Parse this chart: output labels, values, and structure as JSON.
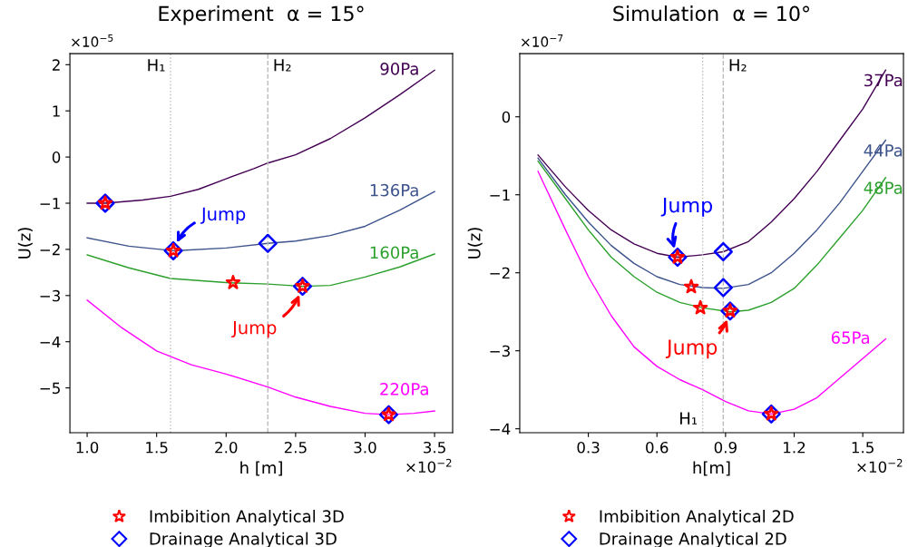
{
  "chart_data": [
    {
      "type": "line",
      "title": "Experiment  α = 15°",
      "xlabel": "h [m]",
      "ylabel": "U(z)",
      "xlim": [
        0.876,
        3.63
      ],
      "xticks": [
        {
          "value": 1.0,
          "label": "1.0"
        },
        {
          "value": 1.5,
          "label": "1.5"
        },
        {
          "value": 2.0,
          "label": "2.0"
        },
        {
          "value": 2.5,
          "label": "2.5"
        },
        {
          "value": 3.0,
          "label": "3.0"
        },
        {
          "value": 3.5,
          "label": "3.5"
        }
      ],
      "ylim": [
        -5.97,
        2.24
      ],
      "yticks": [
        {
          "value": -5,
          "label": "−5"
        },
        {
          "value": -4,
          "label": "−4"
        },
        {
          "value": -3,
          "label": "−3"
        },
        {
          "value": -2,
          "label": "−2"
        },
        {
          "value": -1,
          "label": "−1"
        },
        0,
        1,
        2
      ],
      "grid": false,
      "legend": "bottom",
      "series": [
        {
          "name": "90Pa",
          "color": "#440154",
          "x": [
            1.0,
            1.13,
            1.4,
            1.6,
            1.8,
            2.0,
            2.2,
            2.3,
            2.5,
            2.75,
            3.0,
            3.25,
            3.5
          ],
          "values": [
            -1.0,
            -1.0,
            -0.93,
            -0.85,
            -0.7,
            -0.47,
            -0.25,
            -0.13,
            0.05,
            0.4,
            0.85,
            1.35,
            1.88
          ]
        },
        {
          "name": "136Pa",
          "color": "#3b528b",
          "x": [
            1.0,
            1.3,
            1.62,
            2.0,
            2.3,
            2.5,
            2.75,
            3.0,
            3.25,
            3.5
          ],
          "values": [
            -1.75,
            -1.93,
            -2.03,
            -1.97,
            -1.87,
            -1.82,
            -1.7,
            -1.5,
            -1.15,
            -0.75
          ]
        },
        {
          "name": "160Pa",
          "color": "#2ca02c",
          "x": [
            1.0,
            1.3,
            1.6,
            2.0,
            2.3,
            2.55,
            2.75,
            3.0,
            3.25,
            3.5
          ],
          "values": [
            -2.12,
            -2.4,
            -2.63,
            -2.72,
            -2.75,
            -2.8,
            -2.78,
            -2.6,
            -2.38,
            -2.1
          ]
        },
        {
          "name": "220Pa",
          "color": "#ff00ff",
          "x": [
            1.0,
            1.25,
            1.5,
            1.75,
            2.0,
            2.3,
            2.5,
            2.75,
            3.0,
            3.17,
            3.35,
            3.5
          ],
          "values": [
            -3.1,
            -3.7,
            -4.2,
            -4.5,
            -4.7,
            -4.98,
            -5.2,
            -5.4,
            -5.55,
            -5.58,
            -5.55,
            -5.5
          ]
        },
        {
          "type": "scatter",
          "name": "Drainage Analytical 3D",
          "color": "#0000ff",
          "marker": "diamond",
          "x": [
            1.13,
            1.62,
            2.3,
            2.55,
            3.17
          ],
          "values": [
            -1.0,
            -2.03,
            -1.87,
            -2.8,
            -5.58
          ]
        },
        {
          "type": "scatter",
          "name": "Imbibition Analytical 3D",
          "color": "#ff0000",
          "marker": "star",
          "x": [
            1.13,
            1.62,
            2.05,
            2.55,
            3.17
          ],
          "values": [
            -1.0,
            -2.03,
            -2.72,
            -2.8,
            -5.58
          ]
        }
      ],
      "ref_lines": [
        {
          "axis": "x",
          "value": 1.6,
          "label": "H₁",
          "line_style": "dotted",
          "color": "#bbbbbb"
        },
        {
          "axis": "x",
          "value": 2.3,
          "label": "H₂",
          "line_style": "dashed",
          "color": "#bbbbbb"
        }
      ],
      "annotations": [
        "×10$^{−5}$",
        "×10$^{−2}$",
        {
          "text": "Jump",
          "x": 1.62,
          "y": -2.03
        },
        {
          "text": "Jump",
          "x": 2.55,
          "y": -2.8
        }
      ]
    },
    {
      "type": "line",
      "title": "Simulation  α = 10°",
      "xlabel": "h[m]",
      "ylabel": "U(z)",
      "xlim": [
        0.0,
        1.678
      ],
      "xticks": [
        0.3,
        0.6,
        0.9,
        1.2,
        1.5
      ],
      "ylim": [
        -4.05,
        0.81
      ],
      "yticks": [
        {
          "value": -4,
          "label": "−4"
        },
        {
          "value": -3,
          "label": "−3"
        },
        {
          "value": -2,
          "label": "−2"
        },
        {
          "value": -1,
          "label": "−1"
        },
        0
      ],
      "grid": false,
      "legend": "bottom",
      "series": [
        {
          "name": "37Pa",
          "color": "#440154",
          "x": [
            0.08,
            0.2,
            0.3,
            0.4,
            0.5,
            0.6,
            0.69,
            0.8,
            0.89,
            1.0,
            1.1,
            1.2,
            1.3,
            1.4,
            1.5,
            1.6
          ],
          "values": [
            -0.49,
            -0.9,
            -1.2,
            -1.45,
            -1.63,
            -1.75,
            -1.8,
            -1.77,
            -1.73,
            -1.6,
            -1.35,
            -1.05,
            -0.7,
            -0.3,
            0.1,
            0.6
          ]
        },
        {
          "name": "44Pa",
          "color": "#3b528b",
          "x": [
            0.08,
            0.2,
            0.3,
            0.4,
            0.5,
            0.6,
            0.7,
            0.8,
            0.89,
            1.0,
            1.1,
            1.2,
            1.3,
            1.4,
            1.5,
            1.6
          ],
          "values": [
            -0.53,
            -1.0,
            -1.35,
            -1.65,
            -1.88,
            -2.05,
            -2.15,
            -2.19,
            -2.2,
            -2.15,
            -2.0,
            -1.75,
            -1.45,
            -1.1,
            -0.7,
            -0.3
          ]
        },
        {
          "name": "48Pa",
          "color": "#2ca02c",
          "x": [
            0.08,
            0.2,
            0.3,
            0.4,
            0.5,
            0.6,
            0.7,
            0.8,
            0.92,
            1.0,
            1.1,
            1.2,
            1.3,
            1.4,
            1.5,
            1.6
          ],
          "values": [
            -0.57,
            -1.05,
            -1.45,
            -1.8,
            -2.05,
            -2.25,
            -2.38,
            -2.45,
            -2.5,
            -2.48,
            -2.38,
            -2.2,
            -1.9,
            -1.55,
            -1.2,
            -0.78
          ]
        },
        {
          "name": "65Pa",
          "color": "#ff00ff",
          "x": [
            0.08,
            0.2,
            0.3,
            0.4,
            0.5,
            0.6,
            0.7,
            0.8,
            0.9,
            1.0,
            1.1,
            1.2,
            1.3,
            1.4,
            1.5,
            1.6
          ],
          "values": [
            -0.7,
            -1.45,
            -2.05,
            -2.55,
            -2.95,
            -3.2,
            -3.37,
            -3.5,
            -3.65,
            -3.77,
            -3.81,
            -3.75,
            -3.6,
            -3.35,
            -3.1,
            -2.85
          ]
        },
        {
          "type": "scatter",
          "name": "Drainage Analytical 2D",
          "color": "#0000ff",
          "marker": "diamond",
          "x": [
            0.69,
            0.89,
            0.89,
            0.92,
            1.1
          ],
          "values": [
            -1.8,
            -1.73,
            -2.19,
            -2.49,
            -3.81
          ]
        },
        {
          "type": "scatter",
          "name": "Imbibition Analytical 2D",
          "color": "#ff0000",
          "marker": "star",
          "x": [
            0.69,
            0.75,
            0.79,
            0.92,
            1.1
          ],
          "values": [
            -1.8,
            -2.18,
            -2.45,
            -2.49,
            -3.81
          ]
        }
      ],
      "ref_lines": [
        {
          "axis": "x",
          "value": 0.8,
          "label": "H₁",
          "line_style": "dotted",
          "color": "#bbbbbb"
        },
        {
          "axis": "x",
          "value": 0.89,
          "label": "H₂",
          "line_style": "dashed",
          "color": "#bbbbbb"
        }
      ],
      "annotations": [
        "×10$^{−7}$",
        "×10$^{−2}$",
        {
          "text": "Jump",
          "x": 0.69,
          "y": -1.8
        },
        {
          "text": "Jump",
          "x": 0.92,
          "y": -2.49
        }
      ]
    }
  ]
}
